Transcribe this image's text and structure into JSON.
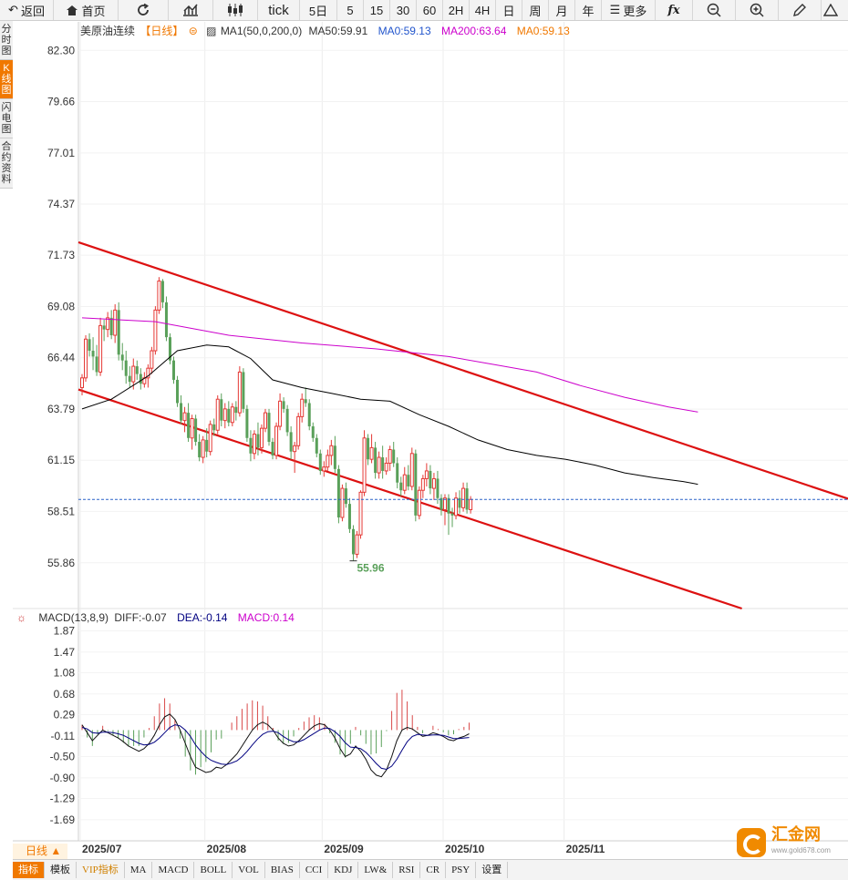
{
  "toolbar": {
    "back": "返回",
    "home": "首页",
    "tick": "tick",
    "periods": [
      "5日",
      "5",
      "15",
      "30",
      "60",
      "2H",
      "4H",
      "日",
      "周",
      "月",
      "年"
    ],
    "more": "更多"
  },
  "sidebar": [
    "分时图",
    "K线图",
    "闪电图",
    "合约资料"
  ],
  "legend": {
    "name": "美原油连续",
    "period": "【日线】",
    "ma_title": "MA1(50,0,200,0)",
    "ma50": "MA50:59.91",
    "ma": "MA0:59.13",
    "ma200": "MA200:63.64",
    "ma0": "MA0:59.13"
  },
  "macd_legend": {
    "title": "MACD(13,8,9)",
    "diff": "DIFF:-0.07",
    "dea": "DEA:-0.14",
    "macd": "MACD:0.14"
  },
  "colors": {
    "up": "#e53935",
    "down": "#5aa05a",
    "ma50": "#000000",
    "ma200": "#cc00cc",
    "channel": "#dd1111",
    "dea": "#000080",
    "macd_label": "#cc00cc",
    "accent": "#f07800"
  },
  "period_label": "日线 ▲",
  "bottom_tabs": [
    "指标",
    "模板",
    "VIP指标",
    "MA",
    "MACD",
    "BOLL",
    "VOL",
    "BIAS",
    "CCI",
    "KDJ",
    "LW&",
    "RSI",
    "CR",
    "PSY",
    "设置"
  ],
  "logo": {
    "text": "汇金网",
    "sub": "www.gold678.com"
  },
  "chart_data": {
    "type": "candlestick",
    "price_axis": {
      "ylim": [
        53.5,
        83.3
      ],
      "ticks": [
        82.3,
        79.66,
        77.01,
        74.37,
        71.73,
        69.08,
        66.44,
        63.79,
        61.15,
        58.51,
        55.86
      ]
    },
    "x_labels": [
      "2025/07",
      "2025/08",
      "2025/09",
      "2025/10",
      "2025/11"
    ],
    "last_price": 59.13,
    "low_marker": "55.96",
    "candles": [
      [
        64.9,
        65.6,
        64.5,
        65.4
      ],
      [
        65.4,
        67.6,
        65.2,
        67.4
      ],
      [
        67.4,
        67.7,
        66.5,
        66.8
      ],
      [
        66.8,
        67.5,
        65.8,
        66.5
      ],
      [
        66.5,
        67.1,
        65.5,
        65.7
      ],
      [
        65.7,
        68.5,
        65.5,
        68.1
      ],
      [
        68.1,
        68.4,
        67.3,
        67.9
      ],
      [
        67.9,
        68.8,
        67.5,
        68.5
      ],
      [
        68.5,
        68.9,
        67.4,
        67.6
      ],
      [
        67.6,
        69.2,
        67.2,
        68.9
      ],
      [
        68.9,
        69.3,
        66.3,
        66.6
      ],
      [
        66.6,
        67.2,
        65.8,
        66.3
      ],
      [
        66.3,
        66.8,
        65.1,
        65.5
      ],
      [
        65.5,
        66.0,
        64.9,
        65.2
      ],
      [
        65.2,
        66.4,
        64.8,
        66.0
      ],
      [
        66.0,
        66.3,
        65.3,
        65.6
      ],
      [
        65.6,
        65.9,
        64.8,
        65.1
      ],
      [
        65.1,
        65.7,
        64.9,
        65.4
      ],
      [
        65.4,
        66.1,
        64.9,
        65.9
      ],
      [
        65.9,
        67.0,
        65.6,
        66.8
      ],
      [
        66.8,
        69.1,
        66.6,
        68.9
      ],
      [
        68.9,
        70.6,
        68.7,
        70.4
      ],
      [
        70.4,
        70.5,
        69.0,
        69.3
      ],
      [
        69.3,
        69.6,
        67.3,
        67.5
      ],
      [
        67.5,
        67.7,
        66.1,
        66.3
      ],
      [
        66.3,
        66.5,
        65.1,
        65.3
      ],
      [
        65.3,
        65.5,
        63.9,
        64.1
      ],
      [
        64.1,
        64.5,
        63.0,
        63.2
      ],
      [
        63.2,
        63.9,
        62.6,
        63.6
      ],
      [
        63.6,
        64.1,
        62.1,
        62.3
      ],
      [
        62.3,
        63.5,
        61.7,
        63.3
      ],
      [
        63.3,
        63.5,
        61.9,
        62.1
      ],
      [
        62.1,
        62.5,
        61.1,
        61.3
      ],
      [
        61.3,
        62.4,
        61.0,
        62.2
      ],
      [
        62.2,
        62.8,
        61.3,
        61.6
      ],
      [
        61.6,
        63.2,
        61.4,
        63.0
      ],
      [
        63.0,
        63.3,
        62.4,
        62.7
      ],
      [
        62.7,
        64.5,
        62.5,
        64.3
      ],
      [
        64.3,
        64.6,
        62.9,
        63.2
      ],
      [
        63.2,
        64.1,
        62.8,
        63.8
      ],
      [
        63.8,
        64.2,
        62.9,
        63.1
      ],
      [
        63.1,
        64.1,
        62.9,
        63.9
      ],
      [
        63.9,
        64.2,
        63.2,
        63.6
      ],
      [
        63.6,
        66.0,
        63.4,
        65.7
      ],
      [
        65.7,
        65.9,
        63.6,
        63.8
      ],
      [
        63.8,
        64.0,
        62.1,
        62.3
      ],
      [
        62.3,
        62.7,
        61.1,
        61.5
      ],
      [
        61.5,
        62.7,
        61.2,
        62.5
      ],
      [
        62.5,
        63.1,
        61.4,
        61.8
      ],
      [
        61.8,
        63.0,
        61.5,
        62.8
      ],
      [
        62.8,
        63.8,
        62.6,
        63.6
      ],
      [
        63.6,
        63.8,
        61.9,
        62.1
      ],
      [
        62.1,
        62.3,
        61.2,
        61.4
      ],
      [
        61.4,
        63.1,
        61.2,
        62.9
      ],
      [
        62.9,
        64.6,
        62.7,
        64.2
      ],
      [
        64.2,
        64.4,
        63.6,
        63.8
      ],
      [
        63.8,
        64.0,
        62.4,
        62.6
      ],
      [
        62.6,
        62.9,
        61.2,
        61.6
      ],
      [
        61.6,
        62.1,
        60.5,
        61.9
      ],
      [
        61.9,
        63.6,
        61.7,
        63.4
      ],
      [
        63.4,
        64.6,
        63.1,
        64.3
      ],
      [
        64.3,
        64.9,
        63.9,
        64.1
      ],
      [
        64.1,
        64.3,
        62.7,
        62.9
      ],
      [
        62.9,
        63.1,
        62.1,
        62.3
      ],
      [
        62.3,
        62.5,
        61.3,
        61.5
      ],
      [
        61.5,
        61.7,
        60.4,
        60.6
      ],
      [
        60.6,
        61.1,
        60.3,
        60.8
      ],
      [
        60.8,
        61.7,
        60.6,
        61.4
      ],
      [
        61.4,
        62.2,
        60.9,
        61.9
      ],
      [
        61.9,
        62.4,
        60.5,
        60.7
      ],
      [
        60.7,
        60.9,
        57.9,
        58.2
      ],
      [
        58.2,
        59.9,
        58.0,
        59.7
      ],
      [
        59.7,
        60.0,
        58.7,
        58.9
      ],
      [
        58.9,
        59.2,
        57.4,
        57.6
      ],
      [
        57.6,
        57.8,
        55.96,
        56.3
      ],
      [
        56.3,
        57.5,
        56.1,
        57.3
      ],
      [
        57.3,
        59.6,
        57.1,
        59.5
      ],
      [
        59.5,
        62.7,
        59.3,
        62.3
      ],
      [
        62.3,
        62.5,
        60.9,
        61.2
      ],
      [
        61.2,
        62.5,
        61.0,
        61.8
      ],
      [
        61.8,
        62.1,
        60.2,
        60.5
      ],
      [
        60.5,
        61.6,
        60.2,
        61.3
      ],
      [
        61.3,
        61.9,
        60.2,
        60.6
      ],
      [
        60.6,
        61.3,
        60.4,
        61.0
      ],
      [
        61.0,
        61.9,
        60.6,
        61.7
      ],
      [
        61.7,
        62.1,
        60.8,
        61.0
      ],
      [
        61.0,
        61.3,
        59.7,
        60.0
      ],
      [
        60.0,
        60.3,
        59.3,
        59.6
      ],
      [
        59.6,
        60.8,
        59.4,
        60.4
      ],
      [
        60.4,
        60.9,
        59.6,
        59.8
      ],
      [
        59.8,
        61.8,
        59.6,
        61.5
      ],
      [
        61.5,
        61.7,
        58.0,
        58.3
      ],
      [
        58.3,
        59.8,
        58.1,
        59.6
      ],
      [
        59.6,
        60.4,
        59.2,
        60.2
      ],
      [
        60.2,
        61.0,
        59.8,
        60.6
      ],
      [
        60.6,
        60.9,
        59.4,
        59.7
      ],
      [
        59.7,
        60.5,
        59.1,
        60.2
      ],
      [
        60.2,
        60.6,
        58.9,
        59.2
      ],
      [
        59.2,
        59.4,
        58.3,
        58.6
      ],
      [
        58.6,
        59.4,
        57.8,
        59.2
      ],
      [
        59.2,
        59.4,
        57.3,
        58.4
      ],
      [
        58.4,
        58.7,
        57.7,
        58.3
      ],
      [
        58.3,
        59.5,
        58.1,
        59.2
      ],
      [
        59.2,
        59.6,
        58.4,
        58.7
      ],
      [
        58.7,
        60.0,
        58.5,
        59.7
      ],
      [
        59.7,
        60.0,
        58.4,
        58.6
      ],
      [
        58.6,
        59.3,
        58.4,
        59.13
      ]
    ],
    "ma50": [
      [
        0,
        63.8
      ],
      [
        8,
        64.3
      ],
      [
        18,
        65.5
      ],
      [
        26,
        66.8
      ],
      [
        34,
        67.1
      ],
      [
        40,
        67.0
      ],
      [
        46,
        66.4
      ],
      [
        52,
        65.3
      ],
      [
        60,
        64.9
      ],
      [
        68,
        64.6
      ],
      [
        76,
        64.3
      ],
      [
        84,
        64.2
      ],
      [
        92,
        63.5
      ],
      [
        100,
        62.9
      ],
      [
        108,
        62.2
      ],
      [
        116,
        61.7
      ],
      [
        124,
        61.4
      ],
      [
        132,
        61.2
      ],
      [
        140,
        60.9
      ],
      [
        148,
        60.5
      ],
      [
        156,
        60.25
      ],
      [
        164,
        60.05
      ],
      [
        168,
        59.91
      ]
    ],
    "ma200": [
      [
        0,
        68.5
      ],
      [
        20,
        68.3
      ],
      [
        40,
        67.6
      ],
      [
        60,
        67.2
      ],
      [
        80,
        66.9
      ],
      [
        100,
        66.5
      ],
      [
        112,
        66.1
      ],
      [
        124,
        65.7
      ],
      [
        136,
        65.0
      ],
      [
        148,
        64.4
      ],
      [
        160,
        63.9
      ],
      [
        168,
        63.64
      ]
    ],
    "channel_upper": [
      [
        0,
        72.4
      ],
      [
        210,
        59.1
      ]
    ],
    "channel_lower": [
      [
        0,
        64.8
      ],
      [
        180,
        53.5
      ]
    ],
    "macd_axis": {
      "ylim": [
        -1.95,
        2.05
      ],
      "ticks": [
        1.87,
        1.47,
        1.08,
        0.68,
        0.29,
        -0.11,
        -0.5,
        -0.9,
        -1.29,
        -1.69
      ]
    },
    "diff": [
      0.1,
      -0.05,
      -0.2,
      -0.1,
      0.0,
      -0.05,
      -0.1,
      -0.15,
      -0.22,
      -0.3,
      -0.35,
      -0.4,
      -0.35,
      -0.25,
      -0.1,
      0.1,
      0.25,
      0.3,
      0.2,
      0.0,
      -0.25,
      -0.5,
      -0.7,
      -0.75,
      -0.8,
      -0.78,
      -0.7,
      -0.72,
      -0.65,
      -0.55,
      -0.45,
      -0.3,
      -0.15,
      0.0,
      0.1,
      0.15,
      0.1,
      0.0,
      -0.15,
      -0.25,
      -0.3,
      -0.28,
      -0.2,
      -0.1,
      0.0,
      0.08,
      0.12,
      0.1,
      0.0,
      -0.15,
      -0.35,
      -0.5,
      -0.45,
      -0.3,
      -0.4,
      -0.55,
      -0.75,
      -0.85,
      -0.88,
      -0.75,
      -0.5,
      -0.2,
      0.0,
      0.05,
      0.02,
      -0.05,
      -0.12,
      -0.1,
      -0.05,
      -0.08,
      -0.12,
      -0.18,
      -0.2,
      -0.15,
      -0.12,
      -0.07
    ],
    "dea": [
      0.05,
      0.02,
      -0.05,
      -0.06,
      -0.04,
      -0.04,
      -0.05,
      -0.07,
      -0.1,
      -0.15,
      -0.2,
      -0.25,
      -0.28,
      -0.27,
      -0.23,
      -0.15,
      -0.05,
      0.05,
      0.1,
      0.08,
      0.0,
      -0.12,
      -0.28,
      -0.4,
      -0.5,
      -0.57,
      -0.61,
      -0.64,
      -0.65,
      -0.62,
      -0.58,
      -0.5,
      -0.4,
      -0.28,
      -0.17,
      -0.08,
      -0.03,
      -0.02,
      -0.05,
      -0.12,
      -0.18,
      -0.22,
      -0.22,
      -0.18,
      -0.12,
      -0.06,
      0.0,
      0.04,
      0.03,
      -0.03,
      -0.12,
      -0.24,
      -0.32,
      -0.33,
      -0.35,
      -0.42,
      -0.52,
      -0.63,
      -0.72,
      -0.74,
      -0.68,
      -0.55,
      -0.38,
      -0.22,
      -0.12,
      -0.08,
      -0.09,
      -0.1,
      -0.09,
      -0.09,
      -0.1,
      -0.13,
      -0.16,
      -0.16,
      -0.15,
      -0.14
    ]
  }
}
